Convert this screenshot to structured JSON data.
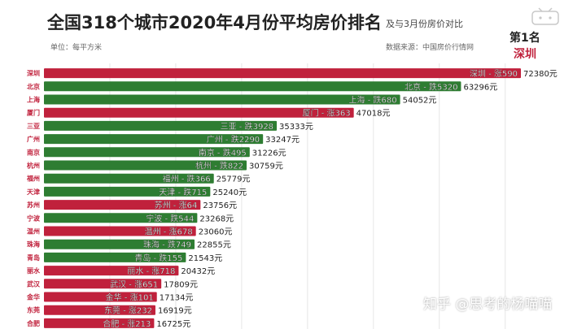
{
  "header": {
    "title": "全国318个城市2020年4月份平均房价排名",
    "subtitle": "及与3月份房价对比",
    "unit": "单位：每平方米",
    "source": "数据来源：中国房价行情网",
    "rank_label": "第1名",
    "rank_city": "深圳",
    "logo_text": "bilibili"
  },
  "watermark": "知乎 @思考的杨喵喵",
  "colors": {
    "rise": "#c0213c",
    "fall": "#2e7d32"
  },
  "chart_data": {
    "type": "bar",
    "orientation": "horizontal",
    "categories": [
      "深圳",
      "北京",
      "上海",
      "厦门",
      "三亚",
      "广州",
      "南京",
      "杭州",
      "福州",
      "天津",
      "苏州",
      "宁波",
      "温州",
      "珠海",
      "青岛",
      "丽水",
      "武汉",
      "金华",
      "东莞",
      "合肥"
    ],
    "values": [
      72380,
      63296,
      54052,
      47018,
      35333,
      33247,
      31226,
      30759,
      25779,
      25240,
      23756,
      23268,
      23060,
      22855,
      21543,
      20432,
      17809,
      17134,
      16919,
      16725
    ],
    "value_labels": [
      "72380元",
      "63296元",
      "54052元",
      "47018元",
      "35333元",
      "33247元",
      "31226元",
      "30759元",
      "25779元",
      "25240元",
      "23756元",
      "23268元",
      "23060元",
      "22855元",
      "21543元",
      "20432元",
      "17809元",
      "17134元",
      "16919元",
      "16725元"
    ],
    "bar_labels": [
      "深圳 - 涨590",
      "北京 - 跌5320",
      "上海 - 跌680",
      "厦门 - 涨363",
      "三亚 - 跌3928",
      "广州 - 跌2290",
      "南京 - 跌495",
      "杭州 - 跌822",
      "福州 - 跌366",
      "天津 - 跌715",
      "苏州 - 涨64",
      "宁波 - 跌544",
      "温州 - 涨678",
      "珠海 - 跌749",
      "青岛 - 跌155",
      "丽水 - 涨718",
      "武汉 - 涨651",
      "金华 - 涨101",
      "东莞 - 涨232",
      "合肥 - 涨213"
    ],
    "change": [
      "rise",
      "fall",
      "fall",
      "rise",
      "fall",
      "fall",
      "fall",
      "fall",
      "fall",
      "fall",
      "rise",
      "fall",
      "rise",
      "fall",
      "fall",
      "rise",
      "rise",
      "rise",
      "rise",
      "rise"
    ],
    "x_ticks": [
      "10000",
      "20000",
      "30000",
      "40000",
      "50000",
      "60000",
      "70000"
    ],
    "xlim": [
      0,
      72380
    ],
    "grid": true
  }
}
